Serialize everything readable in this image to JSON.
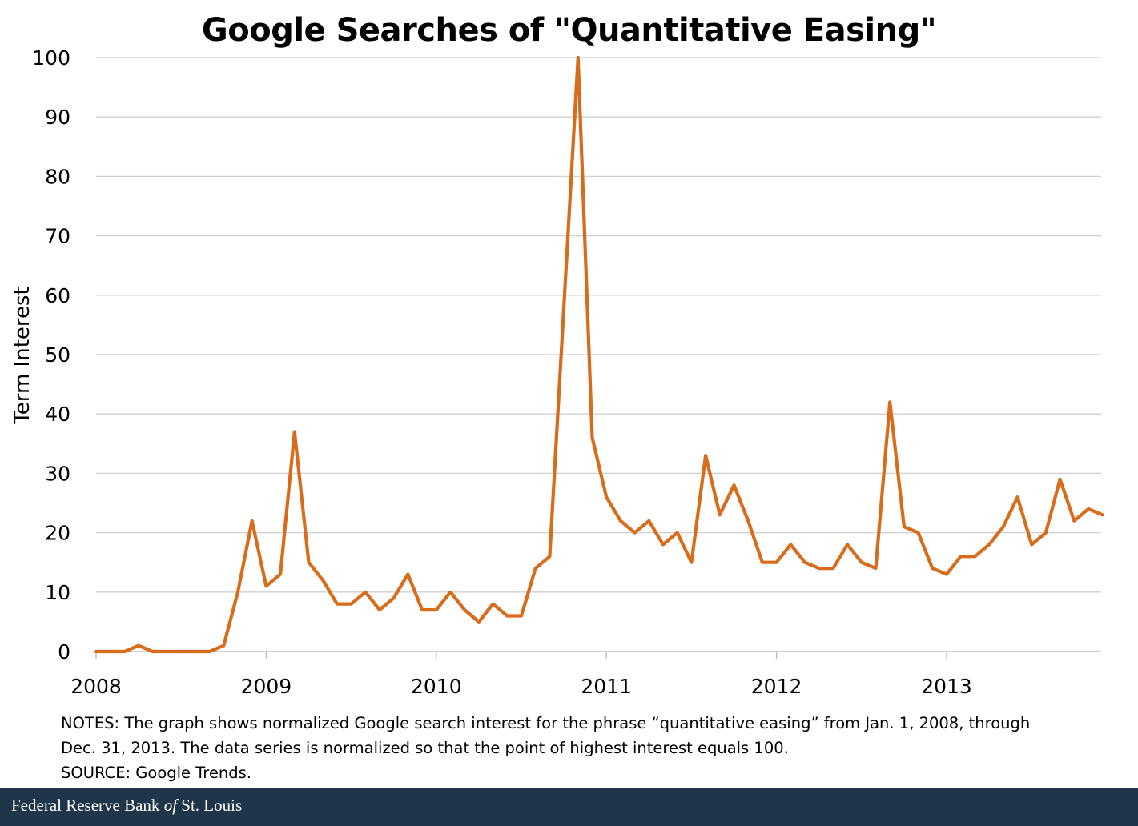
{
  "chart_data": {
    "type": "line",
    "title": "Google Searches of \"Quantitative Easing\"",
    "ylabel": "Term Interest",
    "xlabel": "",
    "ylim": [
      0,
      100
    ],
    "yticks": [
      0,
      10,
      20,
      30,
      40,
      50,
      60,
      70,
      80,
      90,
      100
    ],
    "xticks": [
      "2008",
      "2009",
      "2010",
      "2011",
      "2012",
      "2013"
    ],
    "grid": true,
    "series": [
      {
        "color": "#d86c1b",
        "x_start": "2008-01",
        "x_step": "month",
        "values": [
          0,
          0,
          0,
          1,
          0,
          0,
          0,
          0,
          0,
          1,
          10,
          22,
          11,
          13,
          37,
          15,
          12,
          8,
          8,
          10,
          7,
          9,
          13,
          7,
          7,
          10,
          7,
          5,
          8,
          6,
          6,
          14,
          16,
          58,
          100,
          36,
          26,
          22,
          20,
          22,
          18,
          20,
          15,
          33,
          23,
          28,
          22,
          15,
          15,
          18,
          15,
          14,
          14,
          18,
          15,
          14,
          42,
          21,
          20,
          14,
          13,
          16,
          16,
          18,
          21,
          26,
          18,
          20,
          29,
          22,
          24,
          23
        ]
      }
    ]
  },
  "notes": {
    "line1": "NOTES: The graph shows normalized Google search interest for the phrase “quantitative easing” from Jan. 1, 2008, through",
    "line2": "Dec. 31, 2013. The data series is normalized so that the point of highest interest equals 100.",
    "source": "SOURCE: Google Trends."
  },
  "footer": {
    "text_prefix": "Federal Reserve Bank ",
    "text_italic": "of",
    "text_suffix": " St. Louis",
    "background": "#1f3549"
  }
}
